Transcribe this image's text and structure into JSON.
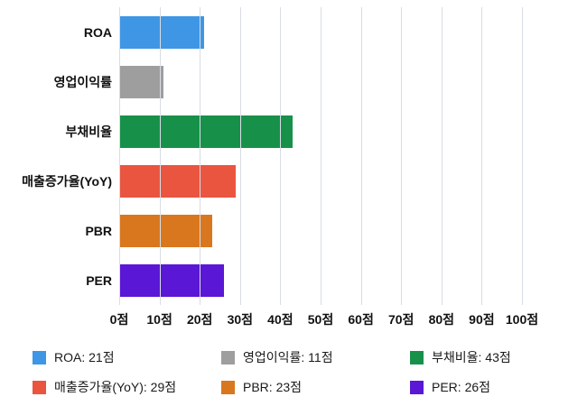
{
  "chart_data": {
    "type": "bar",
    "orientation": "horizontal",
    "title": "",
    "xlabel": "",
    "ylabel": "",
    "unit": "점",
    "categories": [
      "ROA",
      "영업이익률",
      "부채비율",
      "매출증가율(YoY)",
      "PBR",
      "PER"
    ],
    "values": [
      21,
      11,
      43,
      29,
      23,
      26
    ],
    "colors": [
      "#3E96E5",
      "#9E9E9E",
      "#17914A",
      "#EA5540",
      "#D9771E",
      "#5A17D6"
    ],
    "xlim": [
      0,
      100
    ],
    "tick_values": [
      0,
      10,
      20,
      30,
      40,
      50,
      60,
      70,
      80,
      90,
      100
    ],
    "x_tick_labels": [
      "0점",
      "10점",
      "20점",
      "30점",
      "40점",
      "50점",
      "60점",
      "70점",
      "80점",
      "90점",
      "100점"
    ],
    "grid": true,
    "gridline_color": "#d8dde4",
    "legend_position": "bottom",
    "legend": [
      {
        "label": "ROA: 21점",
        "color": "#3E96E5"
      },
      {
        "label": "영업이익률: 11점",
        "color": "#9E9E9E"
      },
      {
        "label": "부채비율: 43점",
        "color": "#17914A"
      },
      {
        "label": "매출증가율(YoY): 29점",
        "color": "#EA5540"
      },
      {
        "label": "PBR: 23점",
        "color": "#D9771E"
      },
      {
        "label": "PER: 26점",
        "color": "#5A17D6"
      }
    ]
  }
}
